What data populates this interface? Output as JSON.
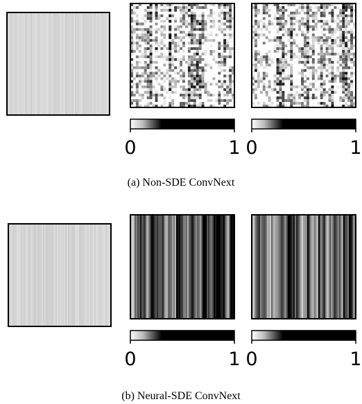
{
  "panels": [
    {
      "caption": "(a) Non-SDE ConvNext",
      "colorbars": [
        {
          "ticks": [
            0,
            1
          ]
        },
        {
          "ticks": [
            0,
            1
          ]
        }
      ]
    },
    {
      "caption": "(b) Neural-SDE ConvNext",
      "colorbars": [
        {
          "ticks": [
            0,
            1
          ]
        },
        {
          "ticks": [
            0,
            1
          ]
        }
      ]
    }
  ]
}
